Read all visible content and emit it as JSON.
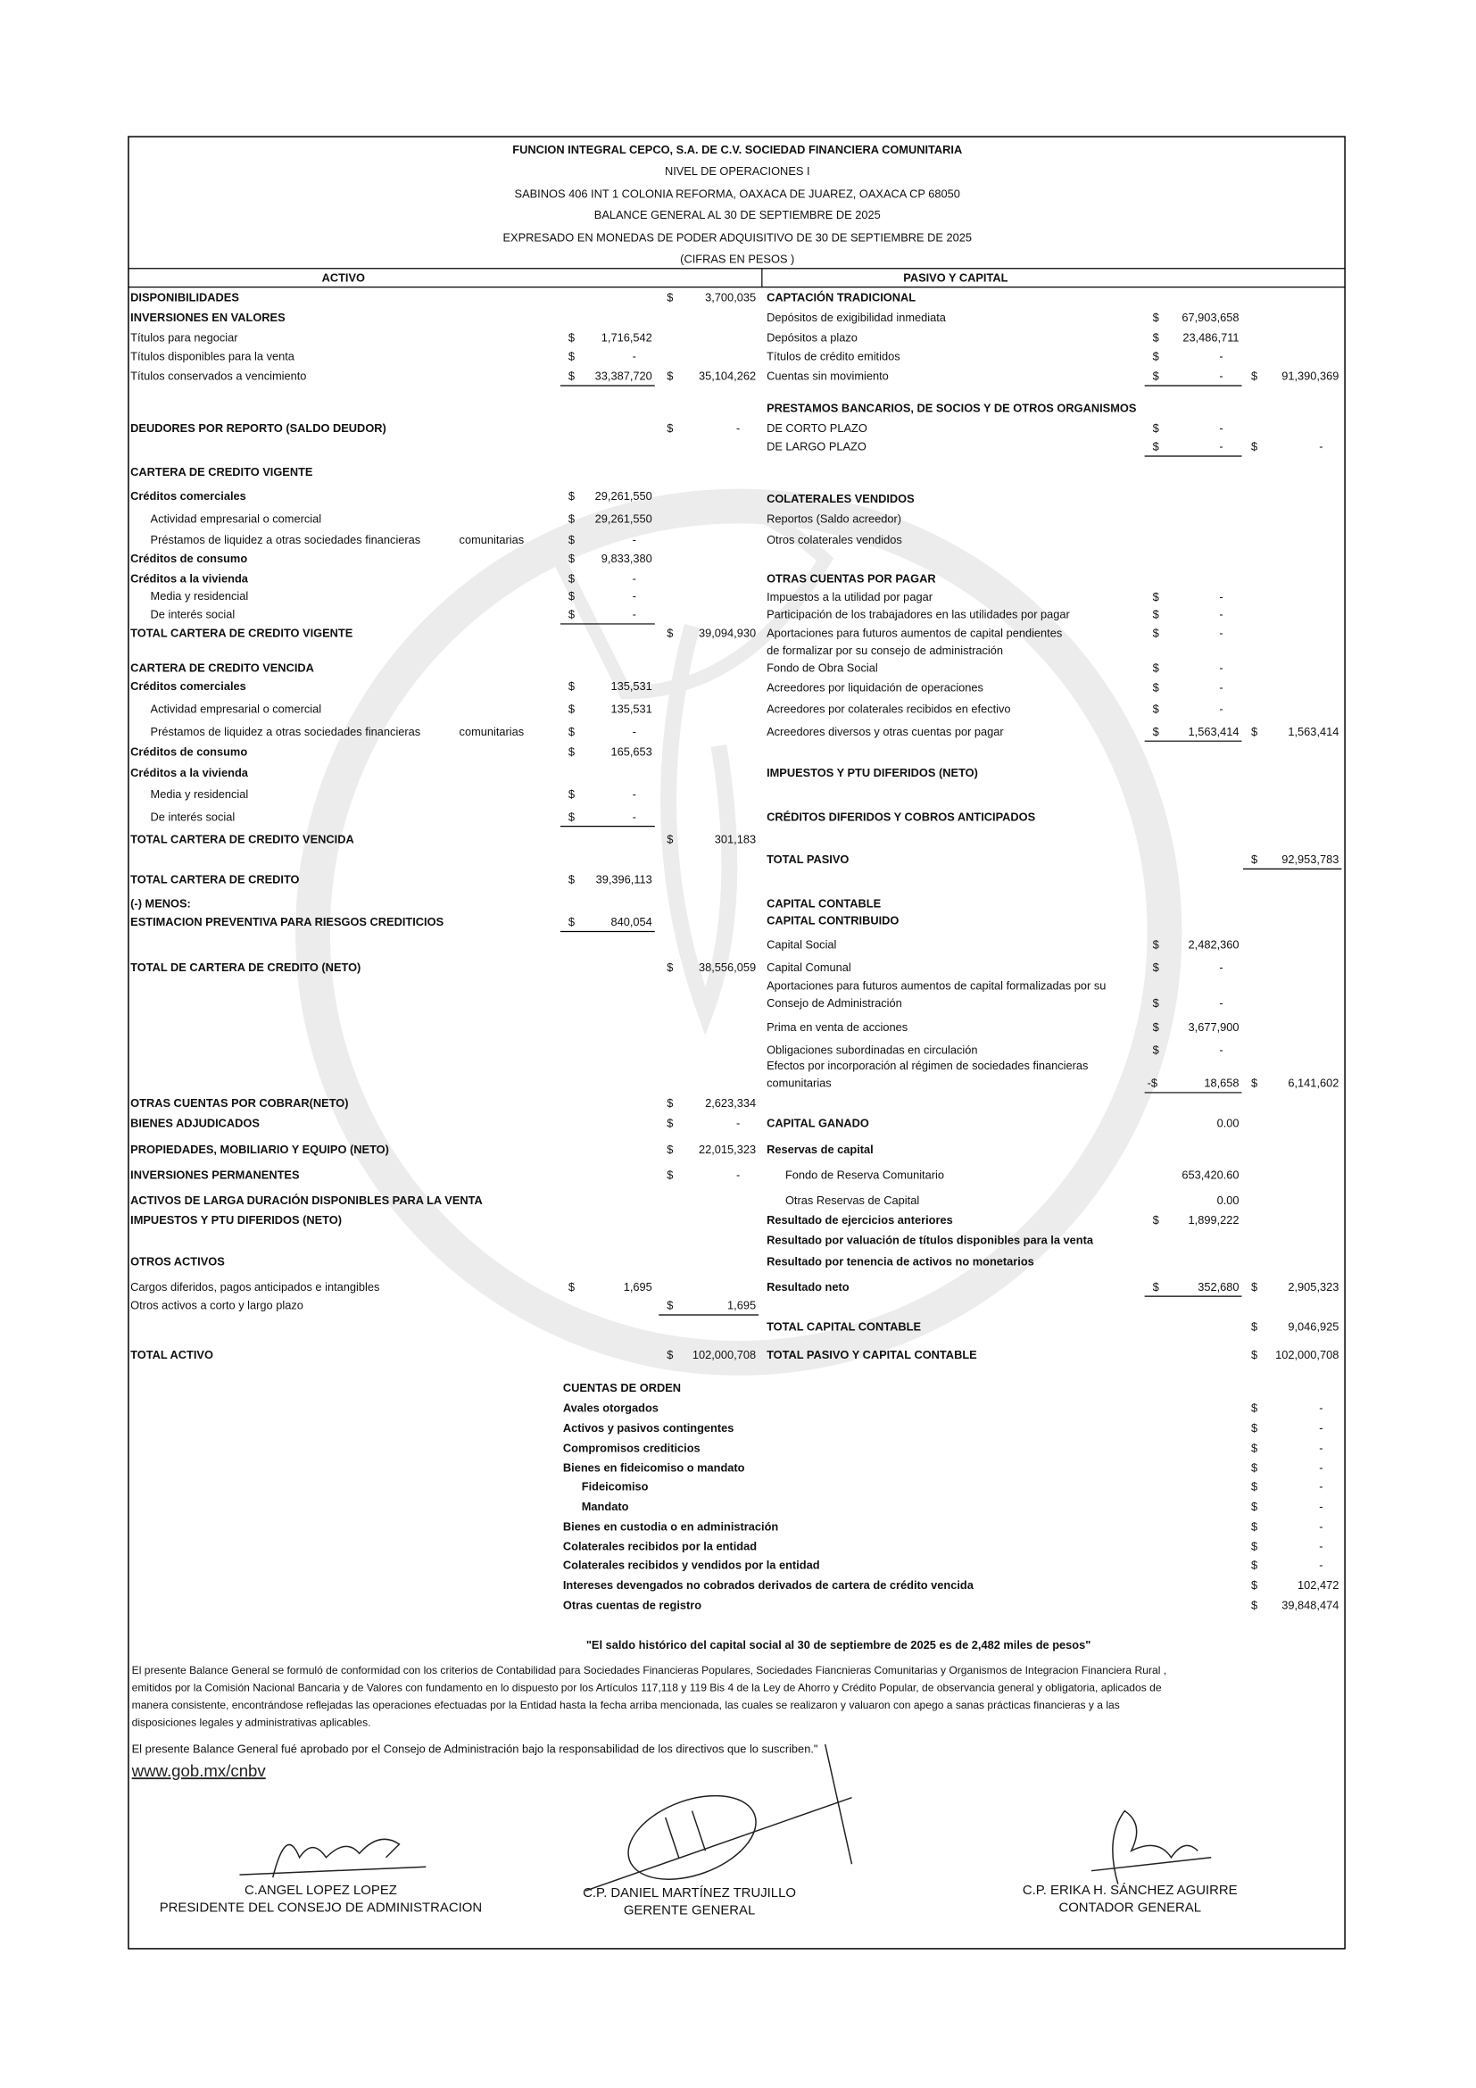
{
  "header": {
    "lines": [
      "FUNCION INTEGRAL CEPCO, S.A. DE C.V. SOCIEDAD FINANCIERA COMUNITARIA",
      "NIVEL DE OPERACIONES I",
      "SABINOS 406 INT 1 COLONIA REFORMA, OAXACA DE JUAREZ, OAXACA CP 68050",
      "BALANCE GENERAL AL 30 DE SEPTIEMBRE DE 2025",
      "EXPRESADO EN MONEDAS DE PODER ADQUISITIVO DE 30 DE SEPTIEMBRE DE 2025",
      "(CIFRAS EN PESOS )"
    ]
  },
  "activo": {
    "title": "ACTIVO",
    "rows": [
      {
        "label": "DISPONIBILIDADES",
        "s2": "$",
        "v2": "3,700,035"
      },
      {
        "label": "INVERSIONES EN VALORES"
      },
      {
        "label": "Títulos para negociar",
        "s1": "$",
        "v1": "1,716,542"
      },
      {
        "label": "Títulos disponibles para la venta",
        "s1": "$",
        "v1": "-"
      },
      {
        "label": "Títulos conservados a vencimiento",
        "s1": "$",
        "v1": "33,387,720",
        "s2": "$",
        "v2": "35,104,262"
      },
      {
        "label": "DEUDORES POR REPORTO (SALDO DEUDOR)",
        "s2": "$",
        "v2": "-"
      },
      {
        "label": "CARTERA DE CREDITO VIGENTE"
      },
      {
        "label": "Créditos comerciales",
        "s1": "$",
        "v1": "29,261,550"
      },
      {
        "label": "Actividad empresarial o comercial",
        "s1": "$",
        "v1": "29,261,550"
      },
      {
        "label": "Préstamos de liquidez a otras sociedades financieras",
        "label2": "comunitarias",
        "s1": "$",
        "v1": "-"
      },
      {
        "label": "Créditos de consumo",
        "s1": "$",
        "v1": "9,833,380"
      },
      {
        "label": "Créditos a la vivienda",
        "s1": "$",
        "v1": "-"
      },
      {
        "label": "Media y residencial",
        "s1": "$",
        "v1": "-"
      },
      {
        "label": "De interés social",
        "s1": "$",
        "v1": "-"
      },
      {
        "label": "TOTAL CARTERA DE CREDITO VIGENTE",
        "s2": "$",
        "v2": "39,094,930"
      },
      {
        "label": "CARTERA DE CREDITO VENCIDA"
      },
      {
        "label": "Créditos comerciales",
        "s1": "$",
        "v1": "135,531"
      },
      {
        "label": "Actividad empresarial o comercial",
        "s1": "$",
        "v1": "135,531"
      },
      {
        "label": "Préstamos de liquidez a otras sociedades financieras",
        "label2": "comunitarias",
        "s1": "$",
        "v1": "-"
      },
      {
        "label": "Créditos de consumo",
        "s1": "$",
        "v1": "165,653"
      },
      {
        "label": "Créditos a la vivienda"
      },
      {
        "label": "Media y residencial",
        "s1": "$",
        "v1": "-"
      },
      {
        "label": "De interés social",
        "s1": "$",
        "v1": "-"
      },
      {
        "label": "TOTAL CARTERA DE CREDITO VENCIDA",
        "s2": "$",
        "v2": "301,183"
      },
      {
        "label": "TOTAL CARTERA DE CREDITO",
        "s1": "$",
        "v1": "39,396,113"
      },
      {
        "label": "(-) MENOS:"
      },
      {
        "label": "ESTIMACION PREVENTIVA PARA RIESGOS CREDITICIOS",
        "s1": "$",
        "v1": "840,054"
      },
      {
        "label": "TOTAL  DE CARTERA DE CREDITO (NETO)",
        "s2": "$",
        "v2": "38,556,059"
      },
      {
        "label": "OTRAS CUENTAS POR COBRAR(NETO)",
        "s2": "$",
        "v2": "2,623,334"
      },
      {
        "label": "BIENES ADJUDICADOS",
        "s2": "$",
        "v2": "-"
      },
      {
        "label": "PROPIEDADES, MOBILIARIO Y EQUIPO (NETO)",
        "s2": "$",
        "v2": "22,015,323"
      },
      {
        "label": "INVERSIONES PERMANENTES",
        "s2": "$",
        "v2": "-"
      },
      {
        "label": "ACTIVOS DE LARGA DURACIÓN DISPONIBLES PARA LA VENTA"
      },
      {
        "label": "IMPUESTOS Y PTU DIFERIDOS (NETO)"
      },
      {
        "label": "OTROS ACTIVOS"
      },
      {
        "label": "Cargos diferidos, pagos anticipados e intangibles",
        "s1": "$",
        "v1": "1,695"
      },
      {
        "label": "Otros activos a corto y largo plazo",
        "s2": "$",
        "v2": "1,695"
      },
      {
        "label": "TOTAL ACTIVO",
        "s2": "$",
        "v2": "102,000,708"
      }
    ]
  },
  "pasivo": {
    "title": "PASIVO Y CAPITAL",
    "rows": [
      {
        "label": "CAPTACIÓN TRADICIONAL"
      },
      {
        "label": "Depósitos de exigibilidad inmediata",
        "s1": "$",
        "v1": "67,903,658"
      },
      {
        "label": "Depósitos a plazo",
        "s1": "$",
        "v1": "23,486,711"
      },
      {
        "label": "Títulos de crédito emitidos",
        "s1": "$",
        "v1": "-"
      },
      {
        "label": "Cuentas sin movimiento",
        "s1": "$",
        "v1": "-",
        "s2": "$",
        "v2": "91,390,369"
      },
      {
        "label": "PRESTAMOS BANCARIOS, DE SOCIOS Y DE OTROS ORGANISMOS"
      },
      {
        "label": "DE CORTO PLAZO",
        "s1": "$",
        "v1": "-"
      },
      {
        "label": "DE LARGO PLAZO",
        "s1": "$",
        "v1": "-",
        "s2": "$",
        "v2": "-"
      },
      {
        "label": "COLATERALES VENDIDOS"
      },
      {
        "label": "Reportos (Saldo acreedor)"
      },
      {
        "label": "Otros colaterales vendidos"
      },
      {
        "label": "OTRAS CUENTAS POR PAGAR"
      },
      {
        "label": "Impuestos a la utilidad por pagar",
        "s1": "$",
        "v1": "-"
      },
      {
        "label": "Participación de los trabajadores en las utilidades por pagar",
        "s1": "$",
        "v1": "-"
      },
      {
        "label": "Aportaciones para futuros aumentos de capital pendientes",
        "s1": "$",
        "v1": "-"
      },
      {
        "label": "de formalizar por su consejo de administración"
      },
      {
        "label": "Fondo de Obra Social",
        "s1": "$",
        "v1": "-"
      },
      {
        "label": "Acreedores por liquidación de operaciones",
        "s1": "$",
        "v1": "-"
      },
      {
        "label": "Acreedores por colaterales recibidos en efectivo",
        "s1": "$",
        "v1": "-"
      },
      {
        "label": "Acreedores diversos y otras cuentas por pagar",
        "s1": "$",
        "v1": "1,563,414",
        "s2": "$",
        "v2": "1,563,414"
      },
      {
        "label": "IMPUESTOS Y PTU DIFERIDOS (NETO)"
      },
      {
        "label": "CRÉDITOS DIFERIDOS Y COBROS ANTICIPADOS"
      },
      {
        "label": "TOTAL PASIVO",
        "s2": "$",
        "v2": "92,953,783"
      },
      {
        "label": "CAPITAL CONTABLE"
      },
      {
        "label": "CAPITAL CONTRIBUIDO"
      },
      {
        "label": "Capital Social",
        "s1": "$",
        "v1": "2,482,360"
      },
      {
        "label": "Capital Comunal",
        "s1": "$",
        "v1": "-"
      },
      {
        "label": "Aportaciones para futuros aumentos de capital formalizadas por su"
      },
      {
        "label": "Consejo de Administración",
        "s1": "$",
        "v1": "-"
      },
      {
        "label": "Prima en venta de acciones",
        "s1": "$",
        "v1": "3,677,900"
      },
      {
        "label": "Obligaciones subordinadas en circulación",
        "s1": "$",
        "v1": "-"
      },
      {
        "label": "Efectos por incorporación al régimen de sociedades financieras"
      },
      {
        "label": "comunitarias",
        "s1": "-$",
        "v1": "18,658",
        "s2": "$",
        "v2": "6,141,602"
      },
      {
        "label": "CAPITAL GANADO",
        "v1": "0.00"
      },
      {
        "label": "Reservas de capital"
      },
      {
        "label": "Fondo de Reserva Comunitario",
        "v1": "653,420.60"
      },
      {
        "label": "Otras Reservas de Capital",
        "v1": "0.00"
      },
      {
        "label": "Resultado de ejercicios anteriores",
        "s1": "$",
        "v1": "1,899,222"
      },
      {
        "label": "Resultado por valuación de títulos disponibles para la venta"
      },
      {
        "label": "Resultado por tenencia de activos no monetarios"
      },
      {
        "label": "Resultado neto",
        "s1": "$",
        "v1": "352,680",
        "s2": "$",
        "v2": "2,905,323"
      },
      {
        "label": "TOTAL CAPITAL CONTABLE",
        "s2": "$",
        "v2": "9,046,925"
      },
      {
        "label": "TOTAL PASIVO Y CAPITAL CONTABLE",
        "s2": "$",
        "v2": "102,000,708"
      }
    ]
  },
  "cuentas_de_orden": {
    "title": "CUENTAS DE ORDEN",
    "rows": [
      {
        "label": "Avales otorgados",
        "s2": "$",
        "v2": "-"
      },
      {
        "label": "Activos y pasivos contingentes",
        "s2": "$",
        "v2": "-"
      },
      {
        "label": "Compromisos crediticios",
        "s2": "$",
        "v2": "-"
      },
      {
        "label": "Bienes en fideicomiso o mandato",
        "s2": "$",
        "v2": "-"
      },
      {
        "label": "Fideicomiso",
        "s2": "$",
        "v2": "-"
      },
      {
        "label": "Mandato",
        "s2": "$",
        "v2": "-"
      },
      {
        "label": "Bienes en custodia o en administración",
        "s2": "$",
        "v2": "-"
      },
      {
        "label": "Colaterales recibidos por la entidad",
        "s2": "$",
        "v2": "-"
      },
      {
        "label": "Colaterales recibidos y vendidos por la entidad",
        "s2": "$",
        "v2": "-"
      },
      {
        "label": "Intereses devengados no cobrados derivados de cartera de crédito vencida",
        "s2": "$",
        "v2": "102,472"
      },
      {
        "label": "Otras cuentas de registro",
        "s2": "$",
        "v2": "39,848,474"
      }
    ]
  },
  "note": "\"El saldo histórico del capital social al 30 de septiembre de 2025 es de 2,482 miles de pesos\"",
  "disclaimer": {
    "lines": [
      "El presente Balance General se formuló de conformidad con los criterios de Contabilidad para Sociedades Financieras Populares, Sociedades Fiancnieras Comunitarias y Organismos de Integracion Financiera Rural ,",
      "emitidos por la Comisión Nacional Bancaria y de Valores con fundamento en lo dispuesto por los Artículos 117,118 y 119 Bis 4 de la Ley de Ahorro y Crédito Popular, de observancia general y obligatoria, aplicados de",
      "manera consistente, encontrándose reflejadas las operaciones efectuadas por la Entidad hasta la fecha arriba mencionada, las cuales se realizaron y valuaron con apego a sanas prácticas financieras y a las",
      "disposiciones legales y administrativas aplicables."
    ]
  },
  "approval": "El presente Balance General fué aprobado por el Consejo de Administración bajo la responsabilidad de los directivos que lo suscriben.\"",
  "url": "www.gob.mx/cnbv",
  "signatures": [
    {
      "name": "C.ANGEL LOPEZ LOPEZ",
      "role": "PRESIDENTE DEL CONSEJO DE ADMINISTRACION"
    },
    {
      "name": "C.P. DANIEL MARTÍNEZ TRUJILLO",
      "role": "GERENTE GENERAL"
    },
    {
      "name": "C.P. ERIKA H. SÁNCHEZ AGUIRRE",
      "role": "CONTADOR GENERAL"
    }
  ]
}
